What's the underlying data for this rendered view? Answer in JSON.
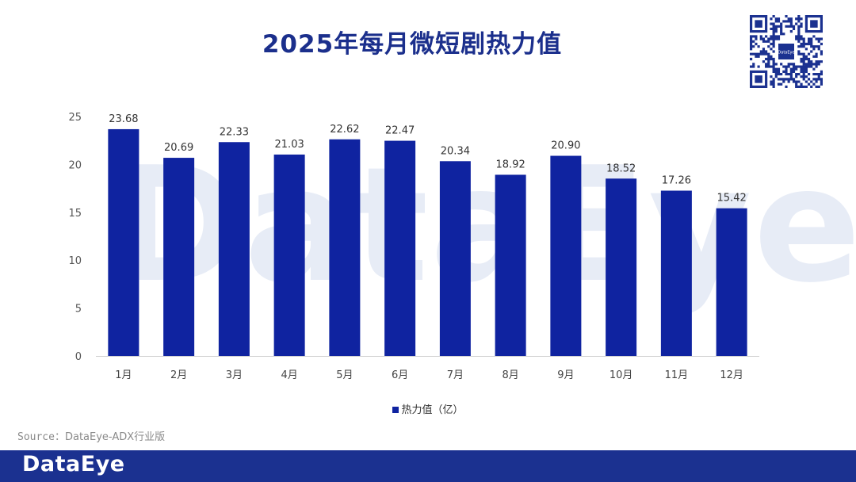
{
  "title": "2025年每月微短剧热力值",
  "watermark_text": "DataEye",
  "qr_center_text": "DataEye",
  "source": {
    "label": "Source：",
    "value": "DataEye-ADX行业版"
  },
  "footer": {
    "logo": "DataEye"
  },
  "colors": {
    "bar": "#0f23a0",
    "title": "#1b2f8c",
    "footer": "#1b3190",
    "watermark": "#e7ecf6"
  },
  "chart_data": {
    "type": "bar",
    "categories": [
      "1月",
      "2月",
      "3月",
      "4月",
      "5月",
      "6月",
      "7月",
      "8月",
      "9月",
      "10月",
      "11月",
      "12月"
    ],
    "series": [
      {
        "name": "热力值（亿）",
        "values": [
          23.68,
          20.69,
          22.33,
          21.03,
          22.62,
          22.47,
          20.34,
          18.92,
          20.9,
          18.52,
          17.26,
          15.42
        ]
      }
    ],
    "data_labels": [
      "23.68",
      "20.69",
      "22.33",
      "21.03",
      "22.62",
      "22.47",
      "20.34",
      "18.92",
      "20.90",
      "18.52",
      "17.26",
      "15.42"
    ],
    "yticks": [
      "0",
      "5",
      "10",
      "15",
      "20",
      "25"
    ],
    "ylim": [
      0,
      25
    ],
    "grid": false,
    "legend_position": "bottom-center"
  }
}
